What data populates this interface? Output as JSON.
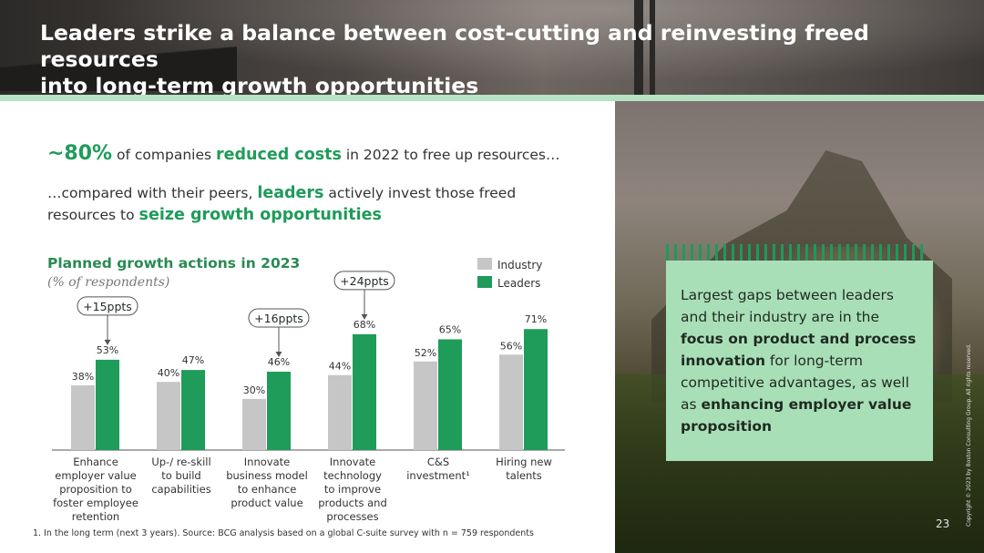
{
  "header": {
    "title_line1": "Leaders strike a balance between cost-cutting and reinvesting freed resources",
    "title_line2": "into long-term growth opportunities"
  },
  "intro": {
    "pct": "~80%",
    "text_a": " of companies ",
    "highlight_a": "reduced costs",
    "text_b": " in 2022 to free up resources…",
    "line2_a": "…compared with their peers, ",
    "line2_hl1": "leaders",
    "line2_b": " actively invest those freed resources to ",
    "line2_hl2": "seize growth opportunities"
  },
  "callout": {
    "t1": "Largest gaps between leaders and their industry are in the ",
    "b1": "focus on product and process innovation",
    "t2": " for long-term competitive advantages, as well as ",
    "b2": "enhancing employer value proposition"
  },
  "footnote": "1. In the long term (next 3 years).  Source: BCG analysis based on a global C-suite survey with n = 759 respondents",
  "page_number": "23",
  "copyright": "Copyright © 2023 by Boston Consulting Group. All rights reserved.",
  "colors": {
    "industry": "#c6c6c6",
    "leaders": "#1f9b5a",
    "accent": "#1f9b5a"
  },
  "chart_data": {
    "type": "bar",
    "title": "Planned growth actions in 2023",
    "subtitle": "(% of respondents)",
    "categories": [
      [
        "Enhance",
        "employer value",
        "proposition to",
        "foster employee",
        "retention"
      ],
      [
        "Up-/ re-skill",
        "to build",
        "capabilities"
      ],
      [
        "Innovate",
        "business model",
        "to enhance",
        "product value"
      ],
      [
        "Innovate",
        "technology",
        "to improve",
        "products and",
        "processes"
      ],
      [
        "C&S",
        "investment¹"
      ],
      [
        "Hiring new",
        "talents"
      ]
    ],
    "series": [
      {
        "name": "Industry",
        "values": [
          38,
          40,
          30,
          44,
          52,
          56
        ]
      },
      {
        "name": "Leaders",
        "values": [
          53,
          47,
          46,
          68,
          65,
          71
        ]
      }
    ],
    "value_suffix": "%",
    "annotations": [
      {
        "category_index": 0,
        "text": "+15ppts"
      },
      {
        "category_index": 2,
        "text": "+16ppts"
      },
      {
        "category_index": 3,
        "text": "+24ppts"
      }
    ],
    "ylim": [
      0,
      80
    ],
    "legend": "top-right",
    "grid": false
  }
}
